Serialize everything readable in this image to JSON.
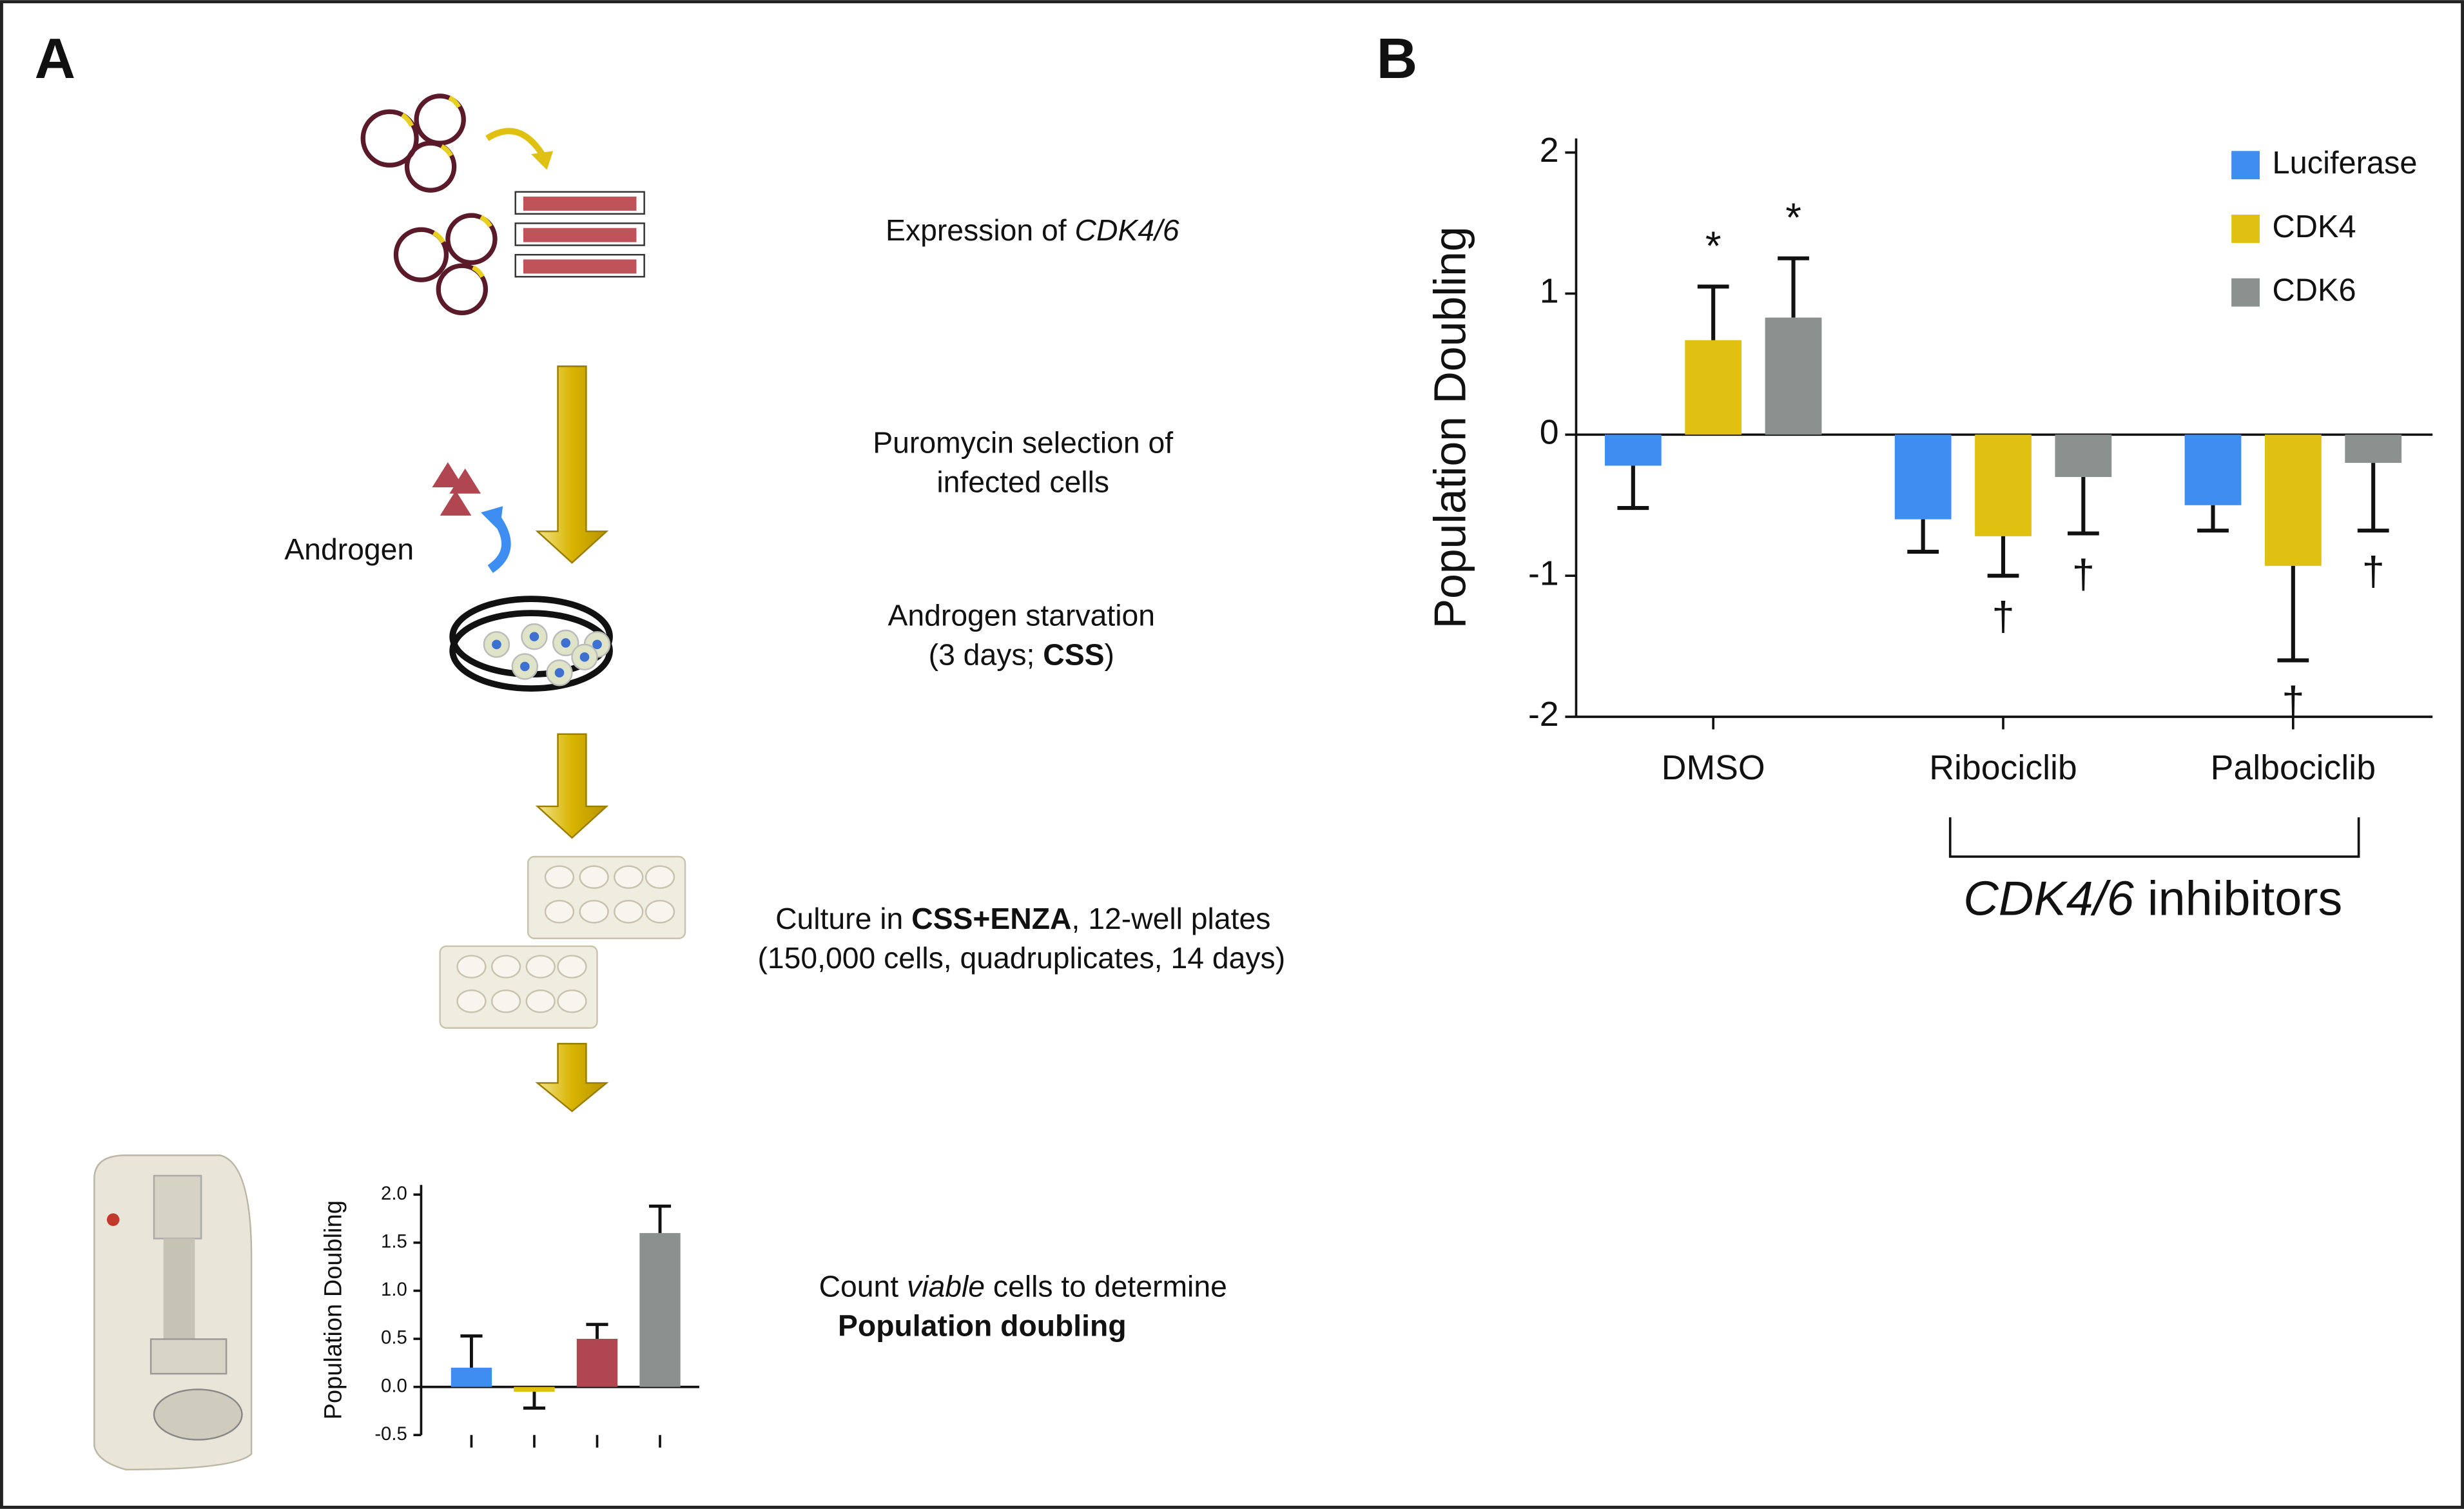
{
  "figure": {
    "panel_labels": [
      "A",
      "B"
    ],
    "androgen_label": "Androgen",
    "steps": [
      [
        [
          "Expression of ",
          "CDK4/6"
        ]
      ],
      [
        [
          "Puromycin selection of"
        ],
        [
          "infected cells"
        ]
      ],
      [
        [
          "Androgen starvation"
        ],
        [
          "(3 days; ",
          "CSS",
          ")"
        ]
      ],
      [
        [
          "Culture in ",
          "CSS+ENZA",
          ", 12-well plates"
        ],
        [
          "(150,000 cells, quadruplicates, 14 days)"
        ]
      ],
      [
        [
          "Count ",
          "viable",
          " cells to determine"
        ],
        [
          "Population doubling"
        ]
      ]
    ],
    "group_label": [
      "CDK4/6",
      " inhibitors"
    ]
  },
  "chart_data": [
    {
      "type": "bar",
      "y_label": "Population Doubling",
      "categories": [
        null,
        null,
        null,
        null
      ],
      "values": [
        0.2,
        -0.05,
        0.5,
        1.6
      ],
      "errors": [
        0.33,
        0.17,
        0.15,
        0.28
      ],
      "colors": [
        "#3d8ef0",
        "#e0c010",
        "#b0464f",
        "#8a918e"
      ],
      "ylim": [
        -0.5,
        2.1
      ],
      "yticks": [
        {
          "value": -0.5,
          "label": "-0.5"
        },
        {
          "value": 0,
          "label": "0.0"
        },
        {
          "value": 0.5,
          "label": "0.5"
        },
        {
          "value": 1,
          "label": "1.0"
        },
        {
          "value": 1.5,
          "label": "1.5"
        },
        {
          "value": 2,
          "label": "2.0"
        }
      ]
    },
    {
      "type": "bar",
      "y_label": "Population Doubling",
      "categories": [
        "DMSO",
        "Ribociclib",
        "Palbociclib"
      ],
      "series": [
        {
          "name": "Luciferase",
          "color": "#3d8ef0",
          "values": [
            -0.22,
            -0.6,
            -0.5
          ],
          "errors": [
            0.3,
            0.23,
            0.18
          ]
        },
        {
          "name": "CDK4",
          "color": "#e0c010",
          "values": [
            0.67,
            -0.72,
            -0.93
          ],
          "errors": [
            0.38,
            0.28,
            0.67
          ],
          "annotations": [
            "*",
            "†",
            "†"
          ]
        },
        {
          "name": "CDK6",
          "color": "#8a918e",
          "values": [
            0.83,
            -0.3,
            -0.2
          ],
          "errors": [
            0.42,
            0.4,
            0.48
          ],
          "annotations": [
            "*",
            "†",
            "†"
          ]
        }
      ],
      "ylim": [
        -2,
        2.1
      ],
      "yticks": [
        -2,
        -1,
        0,
        1,
        2
      ],
      "legend": "top-right"
    }
  ]
}
